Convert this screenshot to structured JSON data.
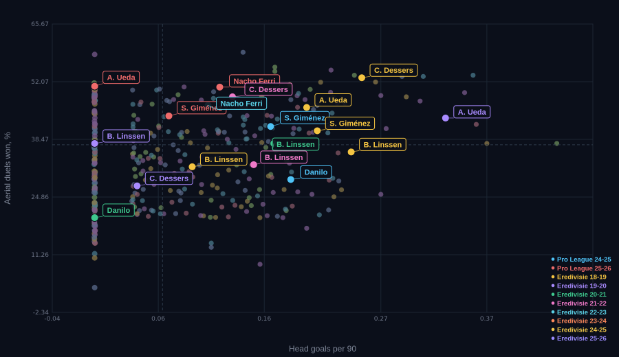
{
  "chart_data": {
    "type": "scatter",
    "xlabel": "Head goals per 90",
    "ylabel": "Aerial duels won, %",
    "xlim": [
      -0.04,
      0.47
    ],
    "ylim": [
      -2.34,
      65.67
    ],
    "x_ticks": [
      -0.04,
      0.06,
      0.16,
      0.27,
      0.37
    ],
    "y_ticks": [
      -2.34,
      11.26,
      24.86,
      38.47,
      52.07,
      65.67
    ],
    "x_tick_labels": [
      "-0.04",
      "0.06",
      "0.16",
      "0.27",
      "0.37"
    ],
    "y_tick_labels": [
      "-2.34",
      "11.26",
      "24.86",
      "38.47",
      "52.07",
      "65.67"
    ],
    "grid": true,
    "legend_position": "bottom-right",
    "reference_lines": {
      "x_mean": 0.064,
      "y_mean": 37.2
    },
    "background_colors": [
      "#5b6b8c",
      "#8c5b6b",
      "#6b8c5b",
      "#8c7a4a",
      "#7a5b8c",
      "#4a7a8c"
    ],
    "series": [
      {
        "name": "Pro League 24-25",
        "color": "#4fc3f7",
        "highlights": [
          {
            "label": "S. Giménez",
            "x": 0.166,
            "y": 41.5
          },
          {
            "label": "Danilo",
            "x": 0.185,
            "y": 29.0
          }
        ]
      },
      {
        "name": "Pro League 25-26",
        "color": "#ef6b6b",
        "highlights": [
          {
            "label": "A. Ueda",
            "x": 0.0,
            "y": 51.0
          },
          {
            "label": "S. Giménez",
            "x": 0.07,
            "y": 44.0
          },
          {
            "label": "Nacho Ferri",
            "x": 0.118,
            "y": 50.8
          }
        ]
      },
      {
        "name": "Eredivisie 18-19",
        "color": "#f5c542",
        "highlights": [
          {
            "label": "C. Dessers",
            "x": 0.252,
            "y": 53.0
          },
          {
            "label": "A. Ueda",
            "x": 0.2,
            "y": 46.0
          },
          {
            "label": "S. Giménez",
            "x": 0.21,
            "y": 40.5
          },
          {
            "label": "B. Linssen",
            "x": 0.242,
            "y": 35.5
          },
          {
            "label": "B. Linssen",
            "x": 0.092,
            "y": 32.0
          }
        ]
      },
      {
        "name": "Eredivisie 19-20",
        "color": "#a98bff",
        "highlights": [
          {
            "label": "A. Ueda",
            "x": 0.331,
            "y": 43.5
          },
          {
            "label": "B. Linssen",
            "x": 0.0,
            "y": 37.5
          },
          {
            "label": "C. Dessers",
            "x": 0.04,
            "y": 27.5
          }
        ]
      },
      {
        "name": "Eredivisie 20-21",
        "color": "#3ec98e",
        "highlights": [
          {
            "label": "B. Linssen",
            "x": 0.169,
            "y": 37.5
          },
          {
            "label": "Danilo",
            "x": 0.0,
            "y": 20.0
          }
        ]
      },
      {
        "name": "Eredivisie 21-22",
        "color": "#ef79c8",
        "highlights": [
          {
            "label": "C. Dessers",
            "x": 0.13,
            "y": 48.5
          },
          {
            "label": "B. Linssen",
            "x": 0.15,
            "y": 32.5
          }
        ]
      },
      {
        "name": "Eredivisie 22-23",
        "color": "#5ad1e6",
        "highlights": [
          {
            "label": "Nacho Ferri",
            "x": 0.107,
            "y": 46.5
          }
        ]
      },
      {
        "name": "Eredivisie 23-24",
        "color": "#ff8a5c",
        "highlights": []
      },
      {
        "name": "Eredivisie 24-25",
        "color": "#f2c94c",
        "highlights": []
      },
      {
        "name": "Eredivisie 25-26",
        "color": "#9b8cff",
        "highlights": []
      }
    ]
  }
}
